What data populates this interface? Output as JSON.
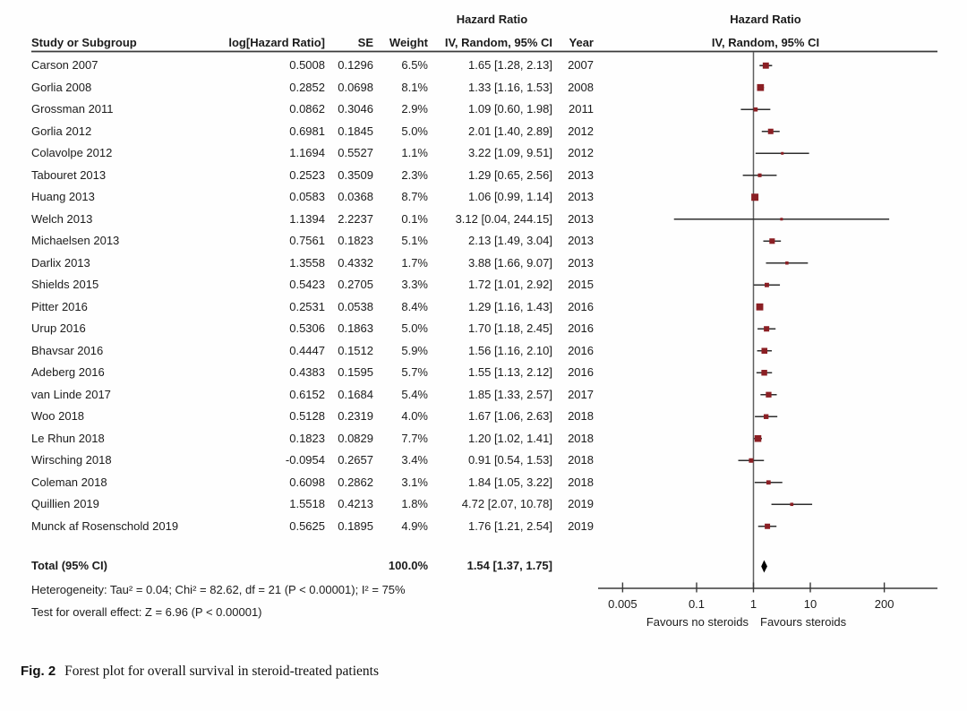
{
  "table_headers": {
    "study": "Study or Subgroup",
    "log_hr": "log[Hazard Ratio]",
    "se": "SE",
    "weight": "Weight",
    "ci": "IV, Random, 95% CI",
    "year": "Year",
    "hazard_ratio_over_ci": "Hazard Ratio"
  },
  "plot_headers": {
    "line1": "Hazard Ratio",
    "line2": "IV, Random, 95% CI"
  },
  "total": {
    "label": "Total (95% CI)",
    "weight": "100.0%",
    "ci_text": "1.54 [1.37, 1.75]",
    "est": 1.54,
    "lo": 1.37,
    "hi": 1.75
  },
  "footer": {
    "heterogeneity": "Heterogeneity: Tau² = 0.04; Chi² = 82.62, df = 21 (P < 0.00001); I² = 75%",
    "overall_effect": "Test for overall effect: Z = 6.96 (P < 0.00001)"
  },
  "axis": {
    "tick_labels": [
      "0.005",
      "0.1",
      "1",
      "10",
      "200"
    ],
    "favours_left": "Favours no steroids",
    "favours_right": "Favours steroids"
  },
  "caption": {
    "label": "Fig. 2",
    "text": "Forest plot for overall survival in steroid-treated patients"
  },
  "colors": {
    "marker": "#8b1f24",
    "ci_line": "#2e2e2e",
    "diamond": "#000000",
    "rule": "#3a3a3a",
    "null_line": "#5f5f5f",
    "text": "#1c1c1c"
  },
  "chart_data": {
    "type": "scatter",
    "variant": "forest_plot",
    "title": "Hazard Ratio IV, Random, 95% CI",
    "x_scale": "log",
    "x_ticks": [
      0.005,
      0.1,
      1,
      10,
      200
    ],
    "xlim": [
      0.002,
      1700
    ],
    "grid": false,
    "studies": [
      {
        "study": "Carson 2007",
        "log_hr": "0.5008",
        "se": "0.1296",
        "weight": "6.5%",
        "ci_text": "1.65 [1.28, 2.13]",
        "year": "2007",
        "est": 1.65,
        "lo": 1.28,
        "hi": 2.13,
        "weight_pct": 6.5
      },
      {
        "study": "Gorlia 2008",
        "log_hr": "0.2852",
        "se": "0.0698",
        "weight": "8.1%",
        "ci_text": "1.33 [1.16, 1.53]",
        "year": "2008",
        "est": 1.33,
        "lo": 1.16,
        "hi": 1.53,
        "weight_pct": 8.1
      },
      {
        "study": "Grossman 2011",
        "log_hr": "0.0862",
        "se": "0.3046",
        "weight": "2.9%",
        "ci_text": "1.09 [0.60, 1.98]",
        "year": "2011",
        "est": 1.09,
        "lo": 0.6,
        "hi": 1.98,
        "weight_pct": 2.9
      },
      {
        "study": "Gorlia 2012",
        "log_hr": "0.6981",
        "se": "0.1845",
        "weight": "5.0%",
        "ci_text": "2.01 [1.40, 2.89]",
        "year": "2012",
        "est": 2.01,
        "lo": 1.4,
        "hi": 2.89,
        "weight_pct": 5.0
      },
      {
        "study": "Colavolpe 2012",
        "log_hr": "1.1694",
        "se": "0.5527",
        "weight": "1.1%",
        "ci_text": "3.22 [1.09, 9.51]",
        "year": "2012",
        "est": 3.22,
        "lo": 1.09,
        "hi": 9.51,
        "weight_pct": 1.1
      },
      {
        "study": "Tabouret 2013",
        "log_hr": "0.2523",
        "se": "0.3509",
        "weight": "2.3%",
        "ci_text": "1.29 [0.65, 2.56]",
        "year": "2013",
        "est": 1.29,
        "lo": 0.65,
        "hi": 2.56,
        "weight_pct": 2.3
      },
      {
        "study": "Huang 2013",
        "log_hr": "0.0583",
        "se": "0.0368",
        "weight": "8.7%",
        "ci_text": "1.06 [0.99, 1.14]",
        "year": "2013",
        "est": 1.06,
        "lo": 0.99,
        "hi": 1.14,
        "weight_pct": 8.7
      },
      {
        "study": "Welch 2013",
        "log_hr": "1.1394",
        "se": "2.2237",
        "weight": "0.1%",
        "ci_text": "3.12 [0.04, 244.15]",
        "year": "2013",
        "est": 3.12,
        "lo": 0.04,
        "hi": 244.15,
        "weight_pct": 0.1
      },
      {
        "study": "Michaelsen 2013",
        "log_hr": "0.7561",
        "se": "0.1823",
        "weight": "5.1%",
        "ci_text": "2.13 [1.49, 3.04]",
        "year": "2013",
        "est": 2.13,
        "lo": 1.49,
        "hi": 3.04,
        "weight_pct": 5.1
      },
      {
        "study": "Darlix 2013",
        "log_hr": "1.3558",
        "se": "0.4332",
        "weight": "1.7%",
        "ci_text": "3.88 [1.66, 9.07]",
        "year": "2013",
        "est": 3.88,
        "lo": 1.66,
        "hi": 9.07,
        "weight_pct": 1.7
      },
      {
        "study": "Shields 2015",
        "log_hr": "0.5423",
        "se": "0.2705",
        "weight": "3.3%",
        "ci_text": "1.72 [1.01, 2.92]",
        "year": "2015",
        "est": 1.72,
        "lo": 1.01,
        "hi": 2.92,
        "weight_pct": 3.3
      },
      {
        "study": "Pitter 2016",
        "log_hr": "0.2531",
        "se": "0.0538",
        "weight": "8.4%",
        "ci_text": "1.29 [1.16, 1.43]",
        "year": "2016",
        "est": 1.29,
        "lo": 1.16,
        "hi": 1.43,
        "weight_pct": 8.4
      },
      {
        "study": "Urup 2016",
        "log_hr": "0.5306",
        "se": "0.1863",
        "weight": "5.0%",
        "ci_text": "1.70 [1.18, 2.45]",
        "year": "2016",
        "est": 1.7,
        "lo": 1.18,
        "hi": 2.45,
        "weight_pct": 5.0
      },
      {
        "study": "Bhavsar 2016",
        "log_hr": "0.4447",
        "se": "0.1512",
        "weight": "5.9%",
        "ci_text": "1.56 [1.16, 2.10]",
        "year": "2016",
        "est": 1.56,
        "lo": 1.16,
        "hi": 2.1,
        "weight_pct": 5.9
      },
      {
        "study": "Adeberg 2016",
        "log_hr": "0.4383",
        "se": "0.1595",
        "weight": "5.7%",
        "ci_text": "1.55 [1.13, 2.12]",
        "year": "2016",
        "est": 1.55,
        "lo": 1.13,
        "hi": 2.12,
        "weight_pct": 5.7
      },
      {
        "study": "van Linde 2017",
        "log_hr": "0.6152",
        "se": "0.1684",
        "weight": "5.4%",
        "ci_text": "1.85 [1.33, 2.57]",
        "year": "2017",
        "est": 1.85,
        "lo": 1.33,
        "hi": 2.57,
        "weight_pct": 5.4
      },
      {
        "study": "Woo 2018",
        "log_hr": "0.5128",
        "se": "0.2319",
        "weight": "4.0%",
        "ci_text": "1.67 [1.06, 2.63]",
        "year": "2018",
        "est": 1.67,
        "lo": 1.06,
        "hi": 2.63,
        "weight_pct": 4.0
      },
      {
        "study": "Le Rhun 2018",
        "log_hr": "0.1823",
        "se": "0.0829",
        "weight": "7.7%",
        "ci_text": "1.20 [1.02, 1.41]",
        "year": "2018",
        "est": 1.2,
        "lo": 1.02,
        "hi": 1.41,
        "weight_pct": 7.7
      },
      {
        "study": "Wirsching 2018",
        "log_hr": "-0.0954",
        "se": "0.2657",
        "weight": "3.4%",
        "ci_text": "0.91 [0.54, 1.53]",
        "year": "2018",
        "est": 0.91,
        "lo": 0.54,
        "hi": 1.53,
        "weight_pct": 3.4
      },
      {
        "study": "Coleman 2018",
        "log_hr": "0.6098",
        "se": "0.2862",
        "weight": "3.1%",
        "ci_text": "1.84 [1.05, 3.22]",
        "year": "2018",
        "est": 1.84,
        "lo": 1.05,
        "hi": 3.22,
        "weight_pct": 3.1
      },
      {
        "study": "Quillien 2019",
        "log_hr": "1.5518",
        "se": "0.4213",
        "weight": "1.8%",
        "ci_text": "4.72 [2.07, 10.78]",
        "year": "2019",
        "est": 4.72,
        "lo": 2.07,
        "hi": 10.78,
        "weight_pct": 1.8
      },
      {
        "study": "Munck af Rosenschold 2019",
        "log_hr": "0.5625",
        "se": "0.1895",
        "weight": "4.9%",
        "ci_text": "1.76 [1.21, 2.54]",
        "year": "2019",
        "est": 1.76,
        "lo": 1.21,
        "hi": 2.54,
        "weight_pct": 4.9
      }
    ],
    "total": {
      "label": "Total (95% CI)",
      "est": 1.54,
      "lo": 1.37,
      "hi": 1.75,
      "weight_pct": 100.0
    },
    "annotations": [
      "Heterogeneity: Tau² = 0.04; Chi² = 82.62, df = 21 (P < 0.00001); I² = 75%",
      "Test for overall effect: Z = 6.96 (P < 0.00001)"
    ],
    "x_axis_labels": {
      "left": "Favours no steroids",
      "right": "Favours steroids"
    }
  }
}
